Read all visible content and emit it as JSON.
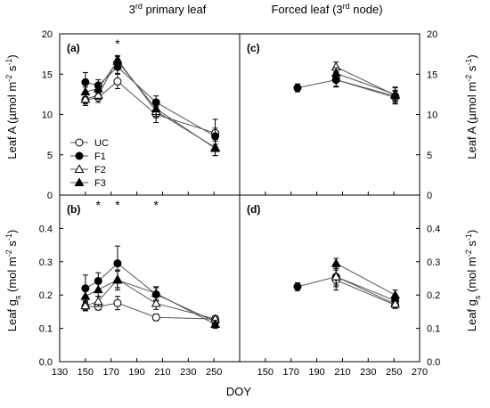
{
  "figure": {
    "col_titles": [
      {
        "base": "3",
        "sup": "rd",
        "rest": " primary leaf"
      },
      {
        "base": "Forced leaf (3",
        "sup": "rd",
        "rest": " node)"
      }
    ],
    "xlabel": "DOY",
    "ylabel_top": {
      "parts": [
        {
          "t": "Leaf A ("
        },
        {
          "t": "µmol m"
        },
        {
          "t": "-2",
          "s": "sup"
        },
        {
          "t": " s"
        },
        {
          "t": "-1",
          "s": "sup"
        },
        {
          "t": ")"
        }
      ]
    },
    "ylabel_bottom": {
      "parts": [
        {
          "t": "Leaf g"
        },
        {
          "t": "s",
          "s": "sub"
        },
        {
          "t": " (mol m"
        },
        {
          "t": "-2",
          "s": "sup"
        },
        {
          "t": " s"
        },
        {
          "t": "-1",
          "s": "sup"
        },
        {
          "t": ")"
        }
      ]
    },
    "legend": [
      {
        "label": "UC",
        "marker": "circle-open"
      },
      {
        "label": "F1",
        "marker": "circle-filled"
      },
      {
        "label": "F2",
        "marker": "triangle-open"
      },
      {
        "label": "F3",
        "marker": "triangle-filled"
      }
    ],
    "colors": {
      "axis": "#000000",
      "line": "#555555",
      "marker": "#000000",
      "open_fill": "#ffffff"
    }
  },
  "chart_data": [
    {
      "panel": "(a)",
      "type": "line",
      "xlim": [
        130,
        270
      ],
      "ylim": [
        0,
        20
      ],
      "xticks": [
        130,
        150,
        170,
        190,
        210,
        230,
        250
      ],
      "yticks": [
        0,
        5,
        10,
        15,
        20
      ],
      "ytick_labels": [
        "0",
        "5",
        "10",
        "15",
        "20"
      ],
      "yaxis_side": "left",
      "show_xtick_labels": false,
      "series": [
        {
          "name": "UC",
          "x": [
            150,
            160,
            175,
            205,
            251
          ],
          "y": [
            11.8,
            12.1,
            14.1,
            10.0,
            7.7
          ],
          "err": [
            0.7,
            0.6,
            0.9,
            1.0,
            1.7
          ]
        },
        {
          "name": "F1",
          "x": [
            150,
            160,
            175,
            205,
            251
          ],
          "y": [
            14.0,
            13.6,
            15.9,
            11.5,
            7.3
          ],
          "err": [
            1.2,
            0.7,
            0.8,
            0.8,
            1.0
          ]
        },
        {
          "name": "F2",
          "x": [
            150,
            160,
            175,
            205,
            251
          ],
          "y": [
            11.9,
            12.4,
            16.8,
            10.4,
            5.9
          ],
          "err": [
            0.6,
            0.5,
            0.5,
            0.8,
            1.0
          ]
        },
        {
          "name": "F3",
          "x": [
            150,
            160,
            175,
            205,
            251
          ],
          "y": [
            12.8,
            13.2,
            16.6,
            10.7,
            5.8
          ],
          "err": [
            0.6,
            0.6,
            0.6,
            0.9,
            0.9
          ]
        }
      ],
      "stars_at": [
        175
      ]
    },
    {
      "panel": "(c)",
      "type": "line",
      "xlim": [
        130,
        270
      ],
      "ylim": [
        0,
        20
      ],
      "xticks": [
        130,
        150,
        170,
        190,
        210,
        230,
        250,
        270
      ],
      "yticks": [
        0,
        5,
        10,
        15,
        20
      ],
      "ytick_labels": [
        "0",
        "5",
        "10",
        "15",
        "20"
      ],
      "yaxis_side": "right",
      "show_xtick_labels": false,
      "series": [
        {
          "name": "UC",
          "x": [
            205,
            251
          ],
          "y": [
            14.3,
            12.1
          ],
          "err": [
            0.8,
            0.8
          ]
        },
        {
          "name": "F1",
          "x": [
            175,
            205,
            251
          ],
          "y": [
            13.3,
            14.3,
            12.3
          ],
          "err": [
            0.5,
            0.9,
            0.7
          ]
        },
        {
          "name": "F2",
          "x": [
            205,
            251
          ],
          "y": [
            15.9,
            12.4
          ],
          "err": [
            0.6,
            1.0
          ]
        },
        {
          "name": "F3",
          "x": [
            205,
            251
          ],
          "y": [
            15.1,
            12.5
          ],
          "err": [
            0.7,
            0.8
          ]
        }
      ],
      "stars_at": []
    },
    {
      "panel": "(b)",
      "type": "line",
      "xlim": [
        130,
        270
      ],
      "ylim": [
        0,
        0.5
      ],
      "xticks": [
        130,
        150,
        170,
        190,
        210,
        230,
        250
      ],
      "xtick_labels": [
        "130",
        "150",
        "170",
        "190",
        "210",
        "230",
        "250"
      ],
      "yticks": [
        0,
        0.1,
        0.2,
        0.3,
        0.4
      ],
      "ytick_labels": [
        "0.0",
        "0.1",
        "0.2",
        "0.3",
        "0.4"
      ],
      "yaxis_side": "left",
      "show_xtick_labels": true,
      "series": [
        {
          "name": "UC",
          "x": [
            150,
            160,
            175,
            205,
            251
          ],
          "y": [
            0.165,
            0.165,
            0.176,
            0.133,
            0.128
          ],
          "err": [
            0.012,
            0.01,
            0.02,
            0.01,
            0.01
          ]
        },
        {
          "name": "F1",
          "x": [
            150,
            160,
            175,
            205,
            251
          ],
          "y": [
            0.22,
            0.242,
            0.295,
            0.202,
            0.12
          ],
          "err": [
            0.04,
            0.025,
            0.052,
            0.02,
            0.012
          ]
        },
        {
          "name": "F2",
          "x": [
            150,
            160,
            175,
            205,
            251
          ],
          "y": [
            0.168,
            0.181,
            0.247,
            0.175,
            0.128
          ],
          "err": [
            0.015,
            0.015,
            0.025,
            0.018,
            0.01
          ]
        },
        {
          "name": "F3",
          "x": [
            150,
            160,
            175,
            205,
            251
          ],
          "y": [
            0.196,
            0.216,
            0.245,
            0.205,
            0.112
          ],
          "err": [
            0.02,
            0.02,
            0.03,
            0.02,
            0.012
          ]
        }
      ],
      "stars_at": [
        160,
        175,
        205
      ]
    },
    {
      "panel": "(d)",
      "type": "line",
      "xlim": [
        130,
        270
      ],
      "ylim": [
        0,
        0.5
      ],
      "xticks": [
        130,
        150,
        170,
        190,
        210,
        230,
        250,
        270
      ],
      "xtick_labels": [
        "",
        "150",
        "170",
        "190",
        "210",
        "230",
        "250",
        "270"
      ],
      "yticks": [
        0,
        0.1,
        0.2,
        0.3,
        0.4
      ],
      "ytick_labels": [
        "0.0",
        "0.1",
        "0.2",
        "0.3",
        "0.4"
      ],
      "yaxis_side": "right",
      "show_xtick_labels": true,
      "series": [
        {
          "name": "UC",
          "x": [
            205,
            251
          ],
          "y": [
            0.245,
            0.17
          ],
          "err": [
            0.03,
            0.01
          ]
        },
        {
          "name": "F1",
          "x": [
            175,
            205,
            251
          ],
          "y": [
            0.225,
            0.255,
            0.183
          ],
          "err": [
            0.012,
            0.03,
            0.015
          ]
        },
        {
          "name": "F2",
          "x": [
            205,
            251
          ],
          "y": [
            0.255,
            0.173
          ],
          "err": [
            0.025,
            0.01
          ]
        },
        {
          "name": "F3",
          "x": [
            205,
            251
          ],
          "y": [
            0.295,
            0.2
          ],
          "err": [
            0.015,
            0.015
          ]
        }
      ],
      "stars_at": []
    }
  ]
}
